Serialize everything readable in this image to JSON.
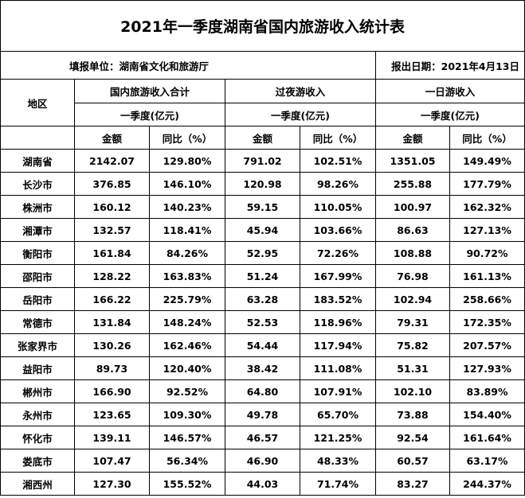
{
  "title": "2021年一季度湖南省国内旅游收入统计表",
  "reporting_unit": "填报单位：湖南省文化和旅游厅",
  "report_date": "报出日期：2021年4月13日",
  "headers": {
    "region": "地区",
    "groups": [
      "国内旅游收入合计",
      "过夜游收入",
      "一日游收入"
    ],
    "period": "一季度(亿元)",
    "amount": "金额",
    "yoy": "同比（%）"
  },
  "rows": [
    {
      "region": "湖南省",
      "total_amount": "2142.07",
      "total_yoy": "129.80%",
      "overnight_amount": "791.02",
      "overnight_yoy": "102.51%",
      "day_amount": "1351.05",
      "day_yoy": "149.49%"
    },
    {
      "region": "长沙市",
      "total_amount": "376.85",
      "total_yoy": "146.10%",
      "overnight_amount": "120.98",
      "overnight_yoy": "98.26%",
      "day_amount": "255.88",
      "day_yoy": "177.79%"
    },
    {
      "region": "株洲市",
      "total_amount": "160.12",
      "total_yoy": "140.23%",
      "overnight_amount": "59.15",
      "overnight_yoy": "110.05%",
      "day_amount": "100.97",
      "day_yoy": "162.32%"
    },
    {
      "region": "湘潭市",
      "total_amount": "132.57",
      "total_yoy": "118.41%",
      "overnight_amount": "45.94",
      "overnight_yoy": "103.66%",
      "day_amount": "86.63",
      "day_yoy": "127.13%"
    },
    {
      "region": "衡阳市",
      "total_amount": "161.84",
      "total_yoy": "84.26%",
      "overnight_amount": "52.95",
      "overnight_yoy": "72.26%",
      "day_amount": "108.88",
      "day_yoy": "90.72%"
    },
    {
      "region": "邵阳市",
      "total_amount": "128.22",
      "total_yoy": "163.83%",
      "overnight_amount": "51.24",
      "overnight_yoy": "167.99%",
      "day_amount": "76.98",
      "day_yoy": "161.13%"
    },
    {
      "region": "岳阳市",
      "total_amount": "166.22",
      "total_yoy": "225.79%",
      "overnight_amount": "63.28",
      "overnight_yoy": "183.52%",
      "day_amount": "102.94",
      "day_yoy": "258.66%"
    },
    {
      "region": "常德市",
      "total_amount": "131.84",
      "total_yoy": "148.24%",
      "overnight_amount": "52.53",
      "overnight_yoy": "118.96%",
      "day_amount": "79.31",
      "day_yoy": "172.35%"
    },
    {
      "region": "张家界市",
      "total_amount": "130.26",
      "total_yoy": "162.46%",
      "overnight_amount": "54.44",
      "overnight_yoy": "117.94%",
      "day_amount": "75.82",
      "day_yoy": "207.57%"
    },
    {
      "region": "益阳市",
      "total_amount": "89.73",
      "total_yoy": "120.40%",
      "overnight_amount": "38.42",
      "overnight_yoy": "111.08%",
      "day_amount": "51.31",
      "day_yoy": "127.93%"
    },
    {
      "region": "郴州市",
      "total_amount": "166.90",
      "total_yoy": "92.52%",
      "overnight_amount": "64.80",
      "overnight_yoy": "107.91%",
      "day_amount": "102.10",
      "day_yoy": "83.89%"
    },
    {
      "region": "永州市",
      "total_amount": "123.65",
      "total_yoy": "109.30%",
      "overnight_amount": "49.78",
      "overnight_yoy": "65.70%",
      "day_amount": "73.88",
      "day_yoy": "154.40%"
    },
    {
      "region": "怀化市",
      "total_amount": "139.11",
      "total_yoy": "146.57%",
      "overnight_amount": "46.57",
      "overnight_yoy": "121.25%",
      "day_amount": "92.54",
      "day_yoy": "161.64%"
    },
    {
      "region": "娄底市",
      "total_amount": "107.47",
      "total_yoy": "56.34%",
      "overnight_amount": "46.90",
      "overnight_yoy": "48.33%",
      "day_amount": "60.57",
      "day_yoy": "63.17%"
    },
    {
      "region": "湘西州",
      "total_amount": "127.30",
      "total_yoy": "155.52%",
      "overnight_amount": "44.03",
      "overnight_yoy": "71.74%",
      "day_amount": "83.27",
      "day_yoy": "244.37%"
    }
  ]
}
